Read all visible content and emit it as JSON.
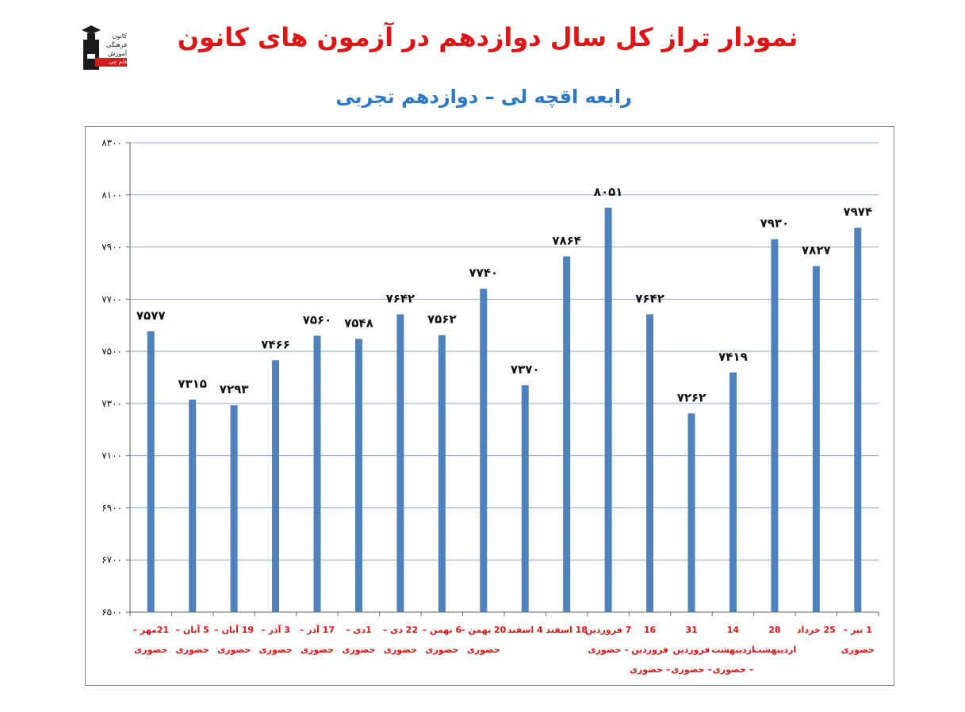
{
  "logo": {
    "icon": "graduate-figure-icon",
    "lines": [
      "کانون",
      "فرهنگی",
      "آموزش",
      "قلم چی"
    ]
  },
  "chart_data": {
    "type": "bar",
    "title": "نمودار تراز کل سال دوازدهم در آزمون های کانون",
    "subtitle": "رابعه اقچه لی – دوازدهم تجربی",
    "ylim": [
      6500,
      8300
    ],
    "yticks": [
      "۸۳۰۰",
      "۸۱۰۰",
      "۷۹۰۰",
      "۷۷۰۰",
      "۷۵۰۰",
      "۷۳۰۰",
      "۷۱۰۰",
      "۶۹۰۰",
      "۶۷۰۰",
      "۶۵۰۰"
    ],
    "ytick_values": [
      8300,
      8100,
      7900,
      7700,
      7500,
      7300,
      7100,
      6900,
      6700,
      6500
    ],
    "grid": true,
    "legend": "none",
    "bar_color": "#4f81bd",
    "category_color": "#e01414",
    "categories": [
      [
        "21مهر –",
        "حضوری"
      ],
      [
        "5 آبان –",
        "حضوری"
      ],
      [
        "19 آبان –",
        "حضوری"
      ],
      [
        "3 آذر –",
        "حضوری"
      ],
      [
        "17 آذر –",
        "حضوری"
      ],
      [
        "1دی –",
        "حضوری"
      ],
      [
        "22 دی –",
        "حضوری"
      ],
      [
        "6 بهمن –",
        "حضوری"
      ],
      [
        "20 بهمن –",
        "حضوری"
      ],
      [
        "4 اسفند"
      ],
      [
        "18 اسفند"
      ],
      [
        "7 فروردین",
        "– حضوری"
      ],
      [
        "16",
        "فروردین",
        "– حضوری"
      ],
      [
        "31",
        "فروردین",
        "– حضوری"
      ],
      [
        "14",
        "اردیبهشت",
        "– حضوری"
      ],
      [
        "28",
        "اردیبهشت"
      ],
      [
        "25 خرداد"
      ],
      [
        "1 تیر –",
        "حضوری"
      ]
    ],
    "values": [
      7577,
      7315,
      7293,
      7466,
      7560,
      7548,
      7642,
      7562,
      7740,
      7370,
      7864,
      8051,
      7642,
      7262,
      7419,
      7930,
      7827,
      7974
    ],
    "value_labels": [
      "۷۵۷۷",
      "۷۳۱۵",
      "۷۲۹۳",
      "۷۴۶۶",
      "۷۵۶۰",
      "۷۵۴۸",
      "۷۶۴۲",
      "۷۵۶۲",
      "۷۷۴۰",
      "۷۳۷۰",
      "۷۸۶۴",
      "۸۰۵۱",
      "۷۶۴۲",
      "۷۲۶۲",
      "۷۴۱۹",
      "۷۹۳۰",
      "۷۸۲۷",
      "۷۹۷۴"
    ]
  }
}
